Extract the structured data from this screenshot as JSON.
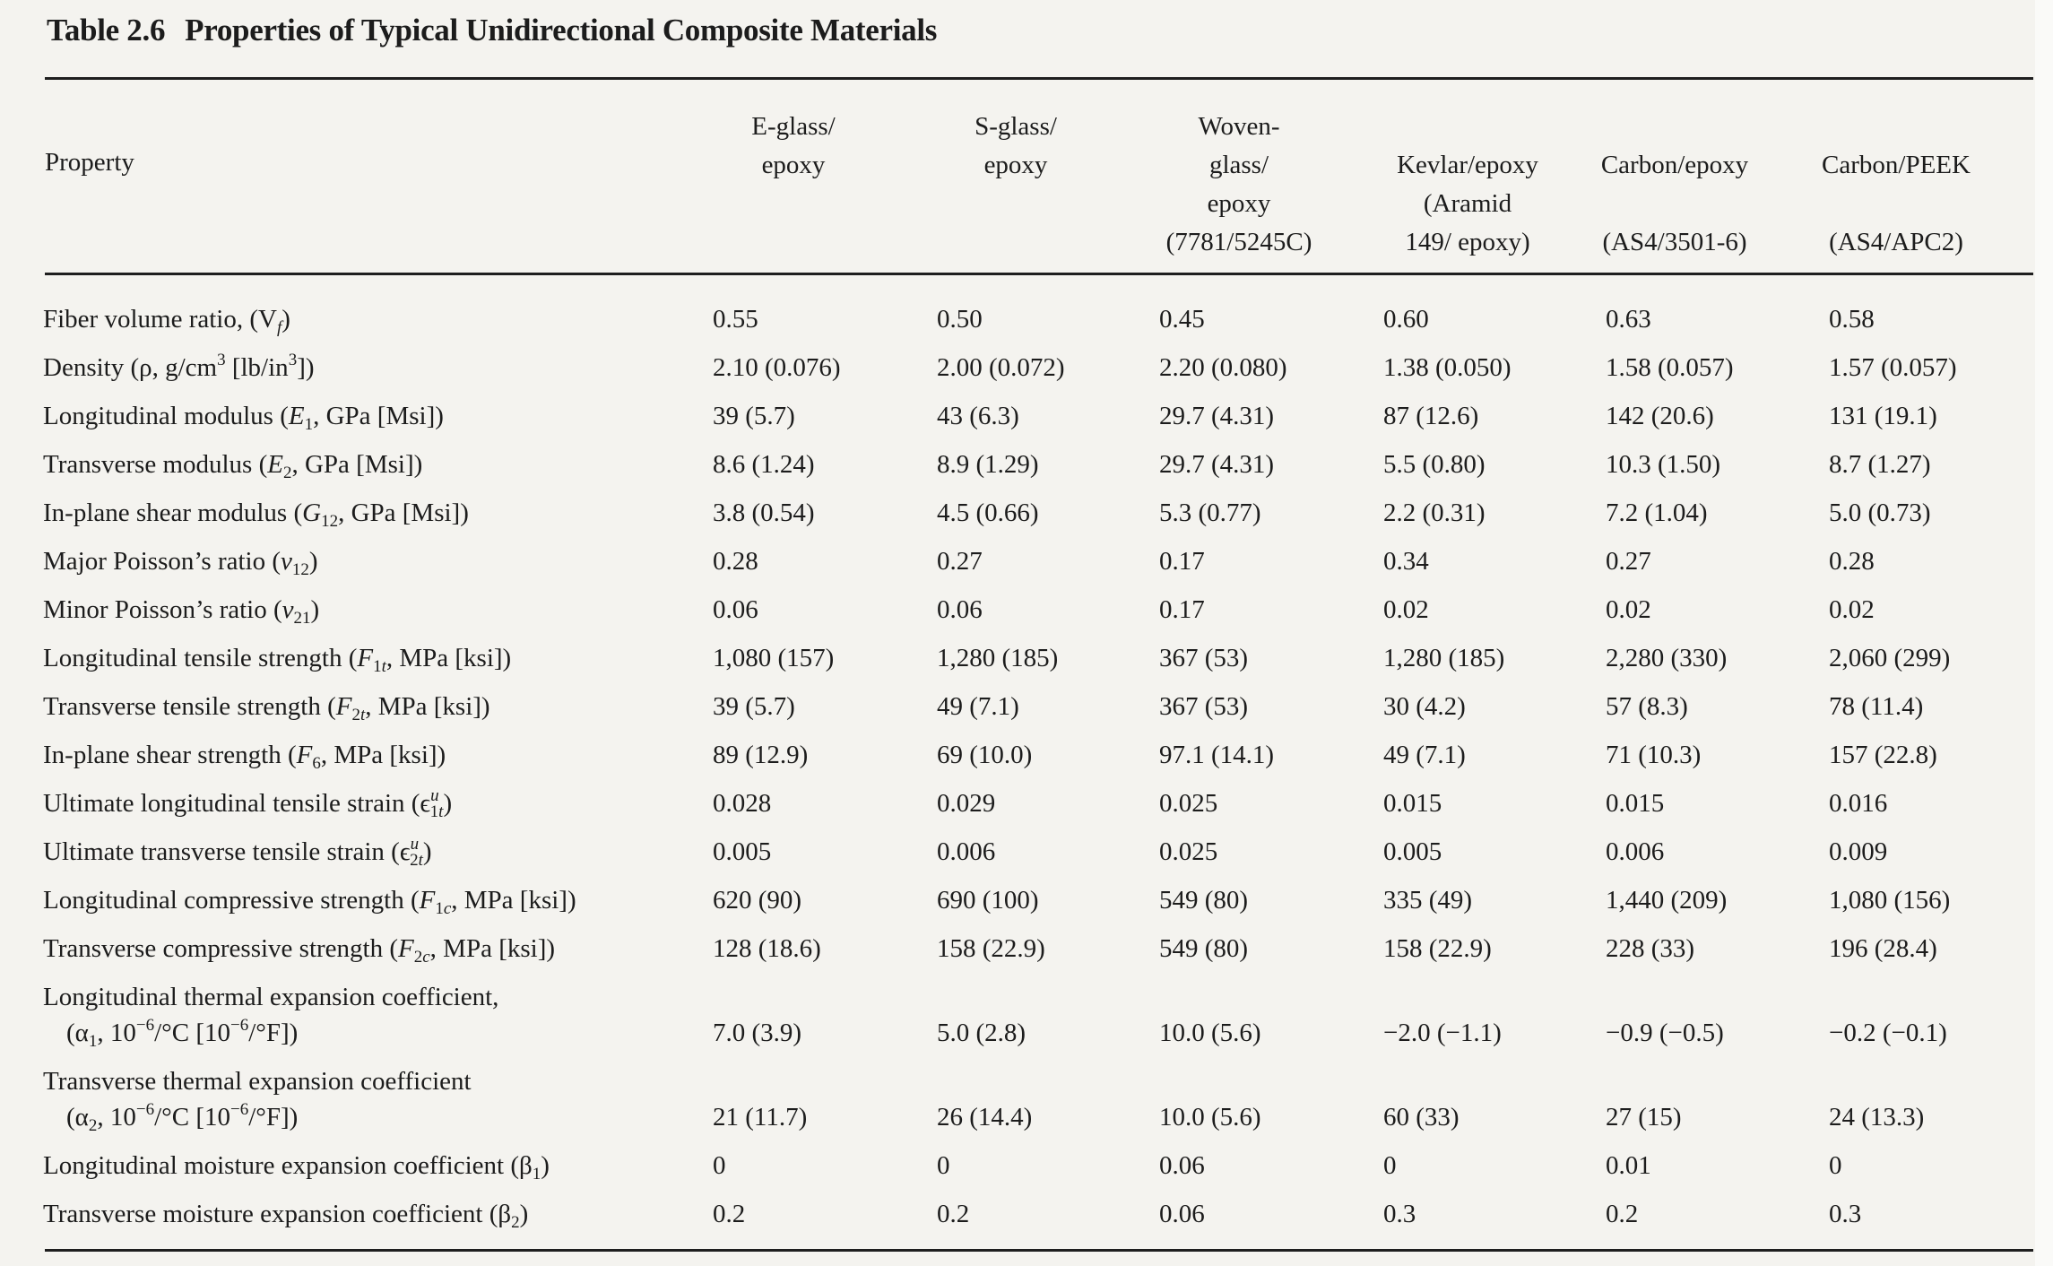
{
  "table": {
    "number": "Table 2.6",
    "title": "Properties of Typical Unidirectional Composite Materials",
    "property_header": "Property",
    "columns": [
      {
        "lines": [
          "E-glass/",
          "epoxy"
        ]
      },
      {
        "lines": [
          "S-glass/",
          "epoxy"
        ]
      },
      {
        "lines": [
          "Woven-",
          "glass/",
          "epoxy",
          "(7781/5245C)"
        ]
      },
      {
        "lines": [
          "Kevlar/epoxy",
          "(Aramid",
          "149/ epoxy)"
        ]
      },
      {
        "lines": [
          "Carbon/epoxy",
          "",
          "(AS4/3501-6)"
        ]
      },
      {
        "lines": [
          "Carbon/PEEK",
          "",
          "(AS4/APC2)"
        ]
      }
    ],
    "rows": [
      {
        "label": "Fiber volume ratio, (V<sub class=\"it\">f</sub>)",
        "label_text": "Fiber volume ratio, (Vf)",
        "values": [
          "0.55",
          "0.50",
          "0.45",
          "0.60",
          "0.63",
          "0.58"
        ]
      },
      {
        "label": "Density (ρ, g/cm<sup>3</sup> [lb/in<sup>3</sup>])",
        "label_text": "Density (ρ, g/cm3 [lb/in3])",
        "values": [
          "2.10 (0.076)",
          "2.00 (0.072)",
          "2.20 (0.080)",
          "1.38 (0.050)",
          "1.58 (0.057)",
          "1.57 (0.057)"
        ]
      },
      {
        "label": "Longitudinal modulus (<span class=\"it\">E</span><sub>1</sub>, GPa [Msi])",
        "label_text": "Longitudinal modulus (E1, GPa [Msi])",
        "values": [
          "39 (5.7)",
          "43 (6.3)",
          "29.7 (4.31)",
          "87 (12.6)",
          "142 (20.6)",
          "131 (19.1)"
        ]
      },
      {
        "label": "Transverse modulus (<span class=\"it\">E</span><sub>2</sub>, GPa [Msi])",
        "label_text": "Transverse modulus (E2, GPa [Msi])",
        "values": [
          "8.6 (1.24)",
          "8.9 (1.29)",
          "29.7 (4.31)",
          "5.5 (0.80)",
          "10.3 (1.50)",
          "8.7 (1.27)"
        ]
      },
      {
        "label": "In-plane shear modulus (<span class=\"it\">G</span><sub>12</sub>, GPa [Msi])",
        "label_text": "In-plane shear modulus (G12, GPa [Msi])",
        "values": [
          "3.8 (0.54)",
          "4.5 (0.66)",
          "5.3 (0.77)",
          "2.2 (0.31)",
          "7.2 (1.04)",
          "5.0 (0.73)"
        ]
      },
      {
        "label": "Major Poisson’s ratio (<span class=\"it\">ν</span><sub>12</sub>)",
        "label_text": "Major Poisson’s ratio (ν12)",
        "values": [
          "0.28",
          "0.27",
          "0.17",
          "0.34",
          "0.27",
          "0.28"
        ]
      },
      {
        "label": "Minor Poisson’s ratio (<span class=\"it\">ν</span><sub>21</sub>)",
        "label_text": "Minor Poisson’s ratio (ν21)",
        "values": [
          "0.06",
          "0.06",
          "0.17",
          "0.02",
          "0.02",
          "0.02"
        ]
      },
      {
        "label": "Longitudinal tensile strength (<span class=\"it\">F</span><sub>1<span class=\"it\">t</span></sub>, MPa [ksi])",
        "label_text": "Longitudinal tensile strength (F1t, MPa [ksi])",
        "values": [
          "1,080 (157)",
          "1,280 (185)",
          "367 (53)",
          "1,280 (185)",
          "2,280 (330)",
          "2,060 (299)"
        ]
      },
      {
        "label": "Transverse tensile strength (<span class=\"it\">F</span><sub>2<span class=\"it\">t</span></sub>, MPa [ksi])",
        "label_text": "Transverse tensile strength (F2t, MPa [ksi])",
        "values": [
          "39 (5.7)",
          "49 (7.1)",
          "367 (53)",
          "30 (4.2)",
          "57 (8.3)",
          "78 (11.4)"
        ]
      },
      {
        "label": "In-plane shear strength (<span class=\"it\">F</span><sub>6</sub>, MPa [ksi])",
        "label_text": "In-plane shear strength (F6, MPa [ksi])",
        "values": [
          "89 (12.9)",
          "69 (10.0)",
          "97.1 (14.1)",
          "49 (7.1)",
          "71 (10.3)",
          "157 (22.8)"
        ]
      },
      {
        "label": "Ultimate longitudinal tensile strain (ϵ<sup class=\"it\">u</sup><sub style=\"margin-left:-10px\">1<span class=\"it\">t</span></sub>)",
        "label_text": "Ultimate longitudinal tensile strain (ϵu1t)",
        "values": [
          "0.028",
          "0.029",
          "0.025",
          "0.015",
          "0.015",
          "0.016"
        ]
      },
      {
        "label": "Ultimate transverse tensile strain (ϵ<sup class=\"it\">u</sup><sub style=\"margin-left:-10px\">2<span class=\"it\">t</span></sub>)",
        "label_text": "Ultimate transverse tensile strain (ϵu2t)",
        "values": [
          "0.005",
          "0.006",
          "0.025",
          "0.005",
          "0.006",
          "0.009"
        ]
      },
      {
        "label": "Longitudinal compressive strength (<span class=\"it\">F</span><sub>1<span class=\"it\">c</span></sub>, MPa [ksi])",
        "label_text": "Longitudinal compressive strength (F1c, MPa [ksi])",
        "values": [
          "620 (90)",
          "690 (100)",
          "549 (80)",
          "335 (49)",
          "1,440 (209)",
          "1,080 (156)"
        ]
      },
      {
        "label": "Transverse compressive strength (<span class=\"it\">F</span><sub>2<span class=\"it\">c</span></sub>, MPa [ksi])",
        "label_text": "Transverse compressive strength (F2c, MPa [ksi])",
        "values": [
          "128 (18.6)",
          "158 (22.9)",
          "549 (80)",
          "158 (22.9)",
          "228 (33)",
          "196 (28.4)"
        ]
      },
      {
        "label": "Longitudinal thermal expansion coefficient,",
        "label2": "(α<sub>1</sub>, 10<sup>−6</sup>/°C [10<sup>−6</sup>/°F])",
        "label_text": "Longitudinal thermal expansion coefficient, (α1, 10−6/°C [10−6/°F])",
        "values": [
          "7.0 (3.9)",
          "5.0 (2.8)",
          "10.0 (5.6)",
          "−2.0 (−1.1)",
          "−0.9 (−0.5)",
          "−0.2 (−0.1)"
        ]
      },
      {
        "label": "Transverse thermal expansion coefficient",
        "label2": "(α<sub>2</sub>, 10<sup>−6</sup>/°C [10<sup>−6</sup>/°F])",
        "label_text": "Transverse thermal expansion coefficient (α2, 10−6/°C [10−6/°F])",
        "values": [
          "21 (11.7)",
          "26 (14.4)",
          "10.0 (5.6)",
          "60 (33)",
          "27 (15)",
          "24 (13.3)"
        ]
      },
      {
        "label": "Longitudinal moisture expansion coefficient (β<sub>1</sub>)",
        "label_text": "Longitudinal moisture expansion coefficient (β1)",
        "values": [
          "0",
          "0",
          "0.06",
          "0",
          "0.01",
          "0"
        ]
      },
      {
        "label": "Transverse moisture expansion coefficient (β<sub>2</sub>)",
        "label_text": "Transverse moisture expansion coefficient (β2)",
        "values": [
          "0.2",
          "0.2",
          "0.06",
          "0.3",
          "0.2",
          "0.3"
        ]
      }
    ]
  }
}
